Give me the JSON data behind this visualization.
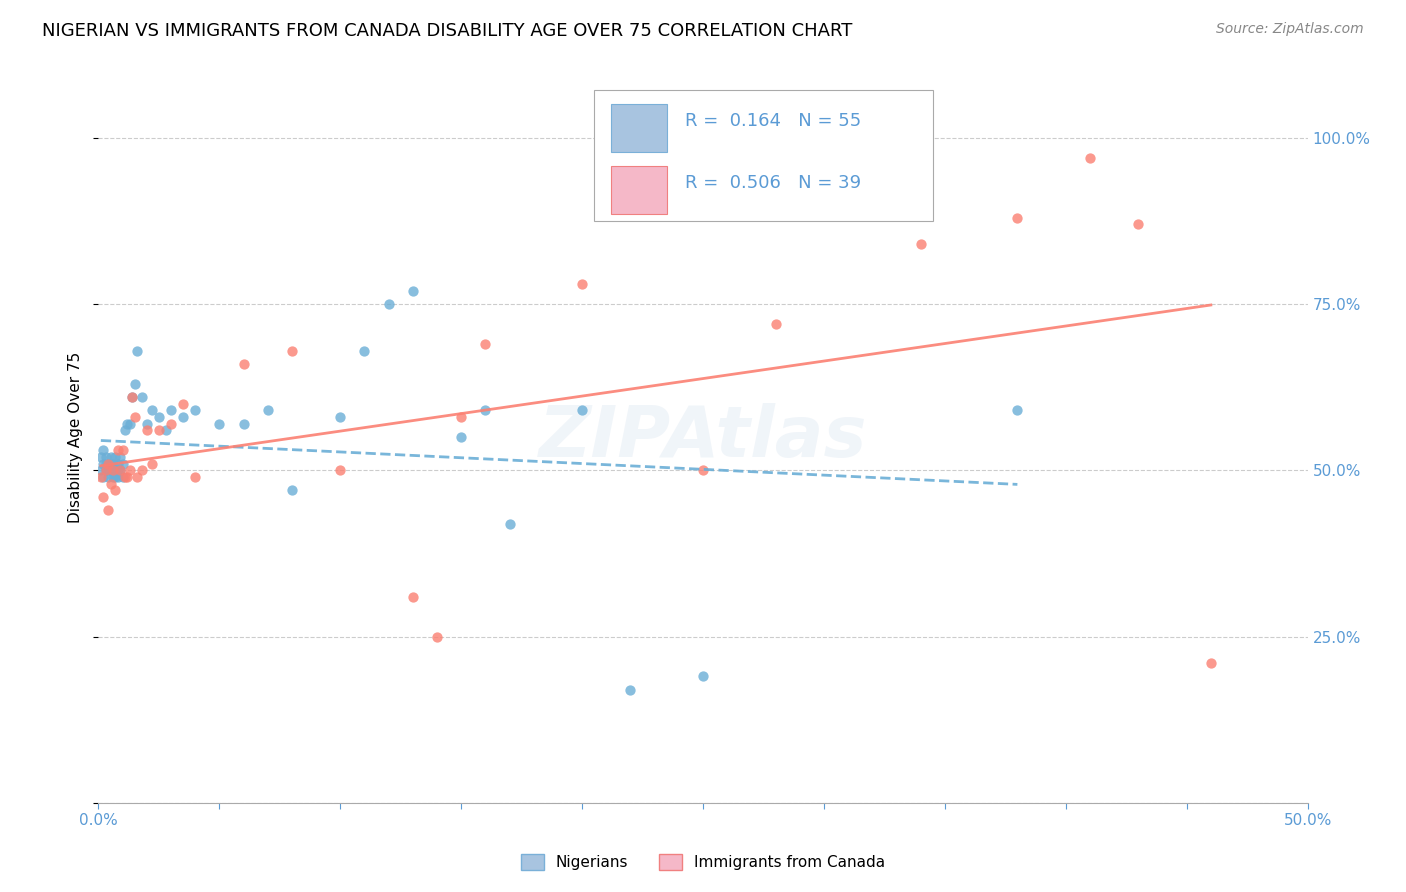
{
  "title": "NIGERIAN VS IMMIGRANTS FROM CANADA DISABILITY AGE OVER 75 CORRELATION CHART",
  "source": "Source: ZipAtlas.com",
  "ylabel": "Disability Age Over 75",
  "xlim": [
    0.0,
    0.5
  ],
  "ylim": [
    0.0,
    1.1
  ],
  "xtick_positions": [
    0.0,
    0.05,
    0.1,
    0.15,
    0.2,
    0.25,
    0.3,
    0.35,
    0.4,
    0.45,
    0.5
  ],
  "xticklabels": [
    "0.0%",
    "",
    "",
    "",
    "",
    "",
    "",
    "",
    "",
    "",
    "50.0%"
  ],
  "ytick_positions": [
    0.0,
    0.25,
    0.5,
    0.75,
    1.0
  ],
  "right_yticklabels": [
    "",
    "25.0%",
    "50.0%",
    "75.0%",
    "100.0%"
  ],
  "nigerian_color": "#6baed6",
  "nigerian_line_color": "#6baed6",
  "canada_color": "#fb8072",
  "canada_line_color": "#fb8072",
  "legend_box_color": "#a8c4e0",
  "legend_box_color2": "#f5b8c8",
  "blue_color": "#5b9bd5",
  "scatter_alpha": 0.8,
  "scatter_size": 55,
  "title_fontsize": 13,
  "axis_label_fontsize": 11,
  "tick_fontsize": 11,
  "source_fontsize": 10,
  "grid_color": "#cccccc",
  "background_color": "#ffffff",
  "nigerian_x": [
    0.001,
    0.001,
    0.002,
    0.002,
    0.002,
    0.003,
    0.003,
    0.003,
    0.004,
    0.004,
    0.004,
    0.005,
    0.005,
    0.005,
    0.006,
    0.006,
    0.006,
    0.007,
    0.007,
    0.008,
    0.008,
    0.008,
    0.009,
    0.009,
    0.01,
    0.01,
    0.011,
    0.012,
    0.013,
    0.014,
    0.015,
    0.016,
    0.018,
    0.02,
    0.022,
    0.025,
    0.028,
    0.03,
    0.035,
    0.04,
    0.05,
    0.06,
    0.07,
    0.08,
    0.1,
    0.11,
    0.12,
    0.13,
    0.15,
    0.16,
    0.17,
    0.2,
    0.22,
    0.25,
    0.38
  ],
  "nigerian_y": [
    0.52,
    0.5,
    0.51,
    0.49,
    0.53,
    0.5,
    0.51,
    0.52,
    0.49,
    0.51,
    0.5,
    0.52,
    0.5,
    0.51,
    0.49,
    0.51,
    0.5,
    0.52,
    0.49,
    0.51,
    0.5,
    0.49,
    0.52,
    0.5,
    0.51,
    0.49,
    0.56,
    0.57,
    0.57,
    0.61,
    0.63,
    0.68,
    0.61,
    0.57,
    0.59,
    0.58,
    0.56,
    0.59,
    0.58,
    0.59,
    0.57,
    0.57,
    0.59,
    0.47,
    0.58,
    0.68,
    0.75,
    0.77,
    0.55,
    0.59,
    0.42,
    0.59,
    0.17,
    0.19,
    0.59
  ],
  "canada_x": [
    0.001,
    0.002,
    0.003,
    0.004,
    0.004,
    0.005,
    0.006,
    0.007,
    0.008,
    0.009,
    0.01,
    0.011,
    0.012,
    0.013,
    0.014,
    0.015,
    0.016,
    0.018,
    0.02,
    0.022,
    0.025,
    0.03,
    0.035,
    0.04,
    0.06,
    0.08,
    0.1,
    0.13,
    0.14,
    0.15,
    0.16,
    0.2,
    0.25,
    0.28,
    0.34,
    0.38,
    0.41,
    0.43,
    0.46
  ],
  "canada_y": [
    0.49,
    0.46,
    0.5,
    0.51,
    0.44,
    0.48,
    0.5,
    0.47,
    0.53,
    0.5,
    0.53,
    0.49,
    0.49,
    0.5,
    0.61,
    0.58,
    0.49,
    0.5,
    0.56,
    0.51,
    0.56,
    0.57,
    0.6,
    0.49,
    0.66,
    0.68,
    0.5,
    0.31,
    0.25,
    0.58,
    0.69,
    0.78,
    0.5,
    0.72,
    0.84,
    0.88,
    0.97,
    0.87,
    0.21
  ]
}
